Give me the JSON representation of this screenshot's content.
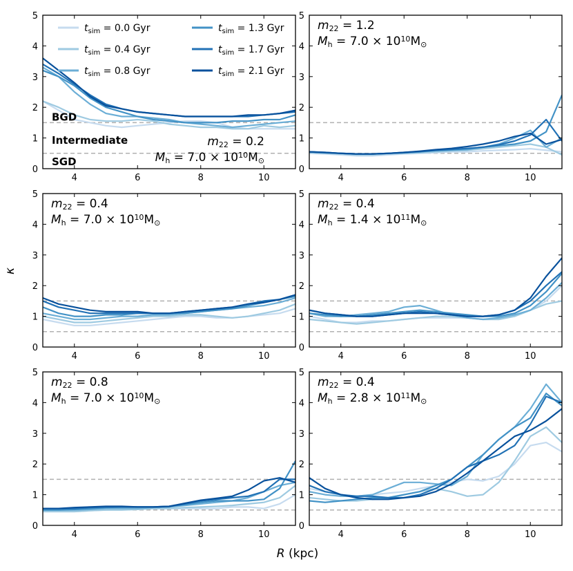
{
  "chart_data": {
    "type": "line",
    "xlabel_prefix": "R",
    "xlabel_suffix": " (kpc)",
    "ylabel": "κ",
    "xlim": [
      3,
      11
    ],
    "ylim": [
      0,
      5
    ],
    "xticks": [
      4,
      6,
      8,
      10
    ],
    "yticks": [
      0,
      1,
      2,
      3,
      4,
      5
    ],
    "reference_lines": [
      0.5,
      1.5
    ],
    "band_labels": {
      "bgd": "BGD",
      "intermediate": "Intermediate",
      "sgd": "SGD"
    },
    "legend": [
      {
        "label": "0.0 Gyr",
        "color": "#c6dbef"
      },
      {
        "label": "0.4 Gyr",
        "color": "#9ecae1"
      },
      {
        "label": "0.8 Gyr",
        "color": "#6baed6"
      },
      {
        "label": "1.3 Gyr",
        "color": "#4292c6"
      },
      {
        "label": "1.7 Gyr",
        "color": "#2171b5"
      },
      {
        "label": "2.1 Gyr",
        "color": "#08519c"
      }
    ],
    "legend_prefix": "t",
    "legend_sub": "sim",
    "legend_eq": " = ",
    "x": [
      3,
      3.5,
      4,
      4.5,
      5,
      5.5,
      6,
      6.5,
      7,
      7.5,
      8,
      8.5,
      9,
      9.5,
      10,
      10.5,
      11
    ],
    "panels": [
      {
        "m22": "0.2",
        "mh_mant": "7.0",
        "mh_exp": "10",
        "ann_align": "right",
        "series": [
          {
            "name": "0.0 Gyr",
            "values": [
              2.2,
              1.9,
              1.6,
              1.5,
              1.4,
              1.35,
              1.4,
              1.45,
              1.5,
              1.55,
              1.55,
              1.5,
              1.35,
              1.3,
              1.3,
              1.3,
              1.3
            ]
          },
          {
            "name": "0.4 Gyr",
            "values": [
              2.2,
              2.0,
              1.75,
              1.6,
              1.55,
              1.55,
              1.6,
              1.55,
              1.45,
              1.4,
              1.35,
              1.35,
              1.3,
              1.3,
              1.4,
              1.35,
              1.4
            ]
          },
          {
            "name": "0.8 Gyr",
            "values": [
              3.3,
              3.0,
              2.5,
              2.1,
              1.8,
              1.7,
              1.7,
              1.65,
              1.6,
              1.5,
              1.45,
              1.4,
              1.35,
              1.4,
              1.45,
              1.5,
              1.55
            ]
          },
          {
            "name": "1.3 Gyr",
            "values": [
              3.2,
              3.0,
              2.7,
              2.3,
              2.0,
              1.85,
              1.7,
              1.6,
              1.55,
              1.5,
              1.5,
              1.5,
              1.55,
              1.55,
              1.6,
              1.6,
              1.75
            ]
          },
          {
            "name": "1.7 Gyr",
            "values": [
              3.4,
              3.1,
              2.75,
              2.4,
              2.1,
              1.95,
              1.85,
              1.8,
              1.75,
              1.7,
              1.7,
              1.7,
              1.7,
              1.7,
              1.75,
              1.8,
              1.85
            ]
          },
          {
            "name": "2.1 Gyr",
            "values": [
              3.6,
              3.2,
              2.8,
              2.35,
              2.05,
              1.95,
              1.85,
              1.8,
              1.75,
              1.7,
              1.7,
              1.7,
              1.7,
              1.75,
              1.75,
              1.8,
              1.9
            ]
          }
        ]
      },
      {
        "m22": "1.2",
        "mh_mant": "7.0",
        "mh_exp": "10",
        "ann_align": "left",
        "series": [
          {
            "name": "0.0 Gyr",
            "values": [
              0.5,
              0.48,
              0.45,
              0.42,
              0.42,
              0.45,
              0.48,
              0.5,
              0.52,
              0.55,
              0.55,
              0.58,
              0.6,
              0.62,
              0.65,
              0.6,
              0.55
            ]
          },
          {
            "name": "0.4 Gyr",
            "values": [
              0.52,
              0.5,
              0.48,
              0.45,
              0.45,
              0.48,
              0.5,
              0.52,
              0.55,
              0.58,
              0.6,
              0.65,
              0.7,
              0.75,
              0.8,
              0.7,
              0.45
            ]
          },
          {
            "name": "0.8 Gyr",
            "values": [
              0.55,
              0.52,
              0.5,
              0.48,
              0.48,
              0.5,
              0.52,
              0.55,
              0.58,
              0.6,
              0.62,
              0.7,
              0.8,
              1.0,
              1.25,
              0.7,
              1.0
            ]
          },
          {
            "name": "1.3 Gyr",
            "values": [
              0.55,
              0.52,
              0.5,
              0.48,
              0.48,
              0.5,
              0.52,
              0.55,
              0.6,
              0.62,
              0.65,
              0.7,
              0.75,
              0.8,
              0.9,
              1.2,
              2.4
            ]
          },
          {
            "name": "1.7 Gyr",
            "values": [
              0.55,
              0.53,
              0.5,
              0.48,
              0.48,
              0.5,
              0.53,
              0.56,
              0.6,
              0.63,
              0.66,
              0.7,
              0.78,
              0.9,
              1.1,
              1.6,
              0.9
            ]
          },
          {
            "name": "2.1 Gyr",
            "values": [
              0.55,
              0.53,
              0.5,
              0.48,
              0.48,
              0.5,
              0.53,
              0.57,
              0.62,
              0.66,
              0.72,
              0.8,
              0.9,
              1.05,
              1.15,
              0.8,
              0.95
            ]
          }
        ]
      },
      {
        "m22": "0.4",
        "mh_mant": "7.0",
        "mh_exp": "10",
        "ann_align": "left",
        "series": [
          {
            "name": "0.0 Gyr",
            "values": [
              0.9,
              0.8,
              0.7,
              0.7,
              0.75,
              0.8,
              0.85,
              0.9,
              0.95,
              1.0,
              1.0,
              0.95,
              0.95,
              1.0,
              1.05,
              1.1,
              1.25
            ]
          },
          {
            "name": "0.4 Gyr",
            "values": [
              1.0,
              0.9,
              0.8,
              0.8,
              0.85,
              0.9,
              0.95,
              1.0,
              1.0,
              1.05,
              1.05,
              1.0,
              0.95,
              1.0,
              1.1,
              1.2,
              1.4
            ]
          },
          {
            "name": "0.8 Gyr",
            "values": [
              1.1,
              1.0,
              0.9,
              0.9,
              0.95,
              1.0,
              1.0,
              1.05,
              1.05,
              1.1,
              1.15,
              1.2,
              1.25,
              1.3,
              1.35,
              1.45,
              1.6
            ]
          },
          {
            "name": "1.3 Gyr",
            "values": [
              1.3,
              1.1,
              1.0,
              1.0,
              1.05,
              1.05,
              1.1,
              1.1,
              1.1,
              1.1,
              1.15,
              1.2,
              1.25,
              1.35,
              1.45,
              1.55,
              1.65
            ]
          },
          {
            "name": "1.7 Gyr",
            "values": [
              1.5,
              1.3,
              1.2,
              1.1,
              1.1,
              1.1,
              1.1,
              1.1,
              1.1,
              1.15,
              1.2,
              1.25,
              1.3,
              1.4,
              1.5,
              1.55,
              1.7
            ]
          },
          {
            "name": "2.1 Gyr",
            "values": [
              1.6,
              1.4,
              1.3,
              1.2,
              1.15,
              1.15,
              1.15,
              1.1,
              1.1,
              1.15,
              1.2,
              1.25,
              1.3,
              1.4,
              1.45,
              1.55,
              1.7
            ]
          }
        ]
      },
      {
        "m22": "0.4",
        "mh_mant": "1.4",
        "mh_exp": "11",
        "ann_align": "left",
        "series": [
          {
            "name": "0.0 Gyr",
            "values": [
              1.0,
              0.9,
              0.8,
              0.8,
              0.85,
              0.85,
              0.9,
              0.95,
              0.95,
              0.95,
              0.95,
              0.9,
              0.9,
              1.0,
              1.2,
              1.5,
              2.0
            ]
          },
          {
            "name": "0.4 Gyr",
            "values": [
              0.9,
              0.85,
              0.8,
              0.75,
              0.8,
              0.85,
              0.9,
              0.95,
              1.0,
              1.0,
              0.95,
              0.9,
              0.9,
              1.0,
              1.2,
              1.4,
              1.5
            ]
          },
          {
            "name": "0.8 Gyr",
            "values": [
              1.1,
              1.0,
              1.0,
              1.05,
              1.1,
              1.15,
              1.3,
              1.35,
              1.2,
              1.05,
              0.95,
              0.9,
              0.95,
              1.05,
              1.2,
              1.6,
              2.1
            ]
          },
          {
            "name": "1.3 Gyr",
            "values": [
              1.1,
              1.05,
              1.0,
              1.0,
              1.05,
              1.1,
              1.15,
              1.2,
              1.15,
              1.1,
              1.05,
              1.0,
              1.0,
              1.1,
              1.35,
              1.8,
              2.4
            ]
          },
          {
            "name": "1.7 Gyr",
            "values": [
              1.2,
              1.1,
              1.05,
              1.0,
              1.0,
              1.05,
              1.1,
              1.15,
              1.1,
              1.05,
              1.0,
              1.0,
              1.05,
              1.2,
              1.5,
              2.0,
              2.45
            ]
          },
          {
            "name": "2.1 Gyr",
            "values": [
              1.2,
              1.1,
              1.05,
              1.0,
              1.0,
              1.05,
              1.1,
              1.1,
              1.1,
              1.05,
              1.0,
              1.0,
              1.05,
              1.2,
              1.6,
              2.3,
              2.9
            ]
          }
        ]
      },
      {
        "m22": "0.8",
        "mh_mant": "7.0",
        "mh_exp": "10",
        "ann_align": "left",
        "series": [
          {
            "name": "0.0 Gyr",
            "values": [
              0.45,
              0.45,
              0.45,
              0.48,
              0.5,
              0.52,
              0.52,
              0.55,
              0.55,
              0.55,
              0.55,
              0.55,
              0.6,
              0.6,
              0.55,
              0.7,
              1.0
            ]
          },
          {
            "name": "0.4 Gyr",
            "values": [
              0.45,
              0.45,
              0.45,
              0.48,
              0.5,
              0.5,
              0.52,
              0.55,
              0.55,
              0.58,
              0.6,
              0.62,
              0.65,
              0.7,
              0.75,
              0.9,
              1.3
            ]
          },
          {
            "name": "0.8 Gyr",
            "values": [
              0.5,
              0.5,
              0.5,
              0.52,
              0.55,
              0.55,
              0.55,
              0.58,
              0.6,
              0.65,
              0.7,
              0.75,
              0.8,
              0.9,
              1.1,
              1.3,
              1.4
            ]
          },
          {
            "name": "1.3 Gyr",
            "values": [
              0.5,
              0.5,
              0.52,
              0.55,
              0.58,
              0.6,
              0.6,
              0.6,
              0.62,
              0.68,
              0.75,
              0.8,
              0.8,
              0.8,
              0.85,
              1.2,
              2.1
            ]
          },
          {
            "name": "1.7 Gyr",
            "values": [
              0.55,
              0.55,
              0.55,
              0.58,
              0.6,
              0.6,
              0.6,
              0.6,
              0.62,
              0.7,
              0.8,
              0.85,
              0.9,
              0.95,
              1.1,
              1.5,
              1.5
            ]
          },
          {
            "name": "2.1 Gyr",
            "values": [
              0.55,
              0.55,
              0.58,
              0.6,
              0.62,
              0.62,
              0.6,
              0.6,
              0.62,
              0.72,
              0.82,
              0.88,
              0.95,
              1.15,
              1.45,
              1.55,
              1.4
            ]
          }
        ]
      },
      {
        "m22": "0.4",
        "mh_mant": "2.8",
        "mh_exp": "11",
        "ann_align": "left",
        "series": [
          {
            "name": "0.0 Gyr",
            "values": [
              1.2,
              1.1,
              1.0,
              0.95,
              1.0,
              1.05,
              1.1,
              1.2,
              1.3,
              1.4,
              1.5,
              1.45,
              1.6,
              2.0,
              2.6,
              2.7,
              2.4
            ]
          },
          {
            "name": "0.4 Gyr",
            "values": [
              0.9,
              0.85,
              0.8,
              0.8,
              0.85,
              0.9,
              1.0,
              1.1,
              1.2,
              1.1,
              0.95,
              1.0,
              1.4,
              2.1,
              2.9,
              3.2,
              2.7
            ]
          },
          {
            "name": "0.8 Gyr",
            "values": [
              1.1,
              1.0,
              0.95,
              0.95,
              1.0,
              1.2,
              1.4,
              1.4,
              1.35,
              1.3,
              1.6,
              2.3,
              2.8,
              3.2,
              3.8,
              4.6,
              4.0
            ]
          },
          {
            "name": "1.3 Gyr",
            "values": [
              0.8,
              0.75,
              0.8,
              0.85,
              0.9,
              0.9,
              1.0,
              1.1,
              1.3,
              1.5,
              1.9,
              2.3,
              2.8,
              3.2,
              3.5,
              4.3,
              3.9
            ]
          },
          {
            "name": "1.7 Gyr",
            "values": [
              1.3,
              1.1,
              1.0,
              0.95,
              0.95,
              0.9,
              0.9,
              1.0,
              1.2,
              1.5,
              1.9,
              2.1,
              2.3,
              2.6,
              3.3,
              4.2,
              4.0
            ]
          },
          {
            "name": "2.1 Gyr",
            "values": [
              1.55,
              1.2,
              1.0,
              0.9,
              0.85,
              0.85,
              0.9,
              0.95,
              1.1,
              1.35,
              1.7,
              2.1,
              2.5,
              2.9,
              3.1,
              3.4,
              3.8
            ]
          }
        ]
      }
    ]
  }
}
